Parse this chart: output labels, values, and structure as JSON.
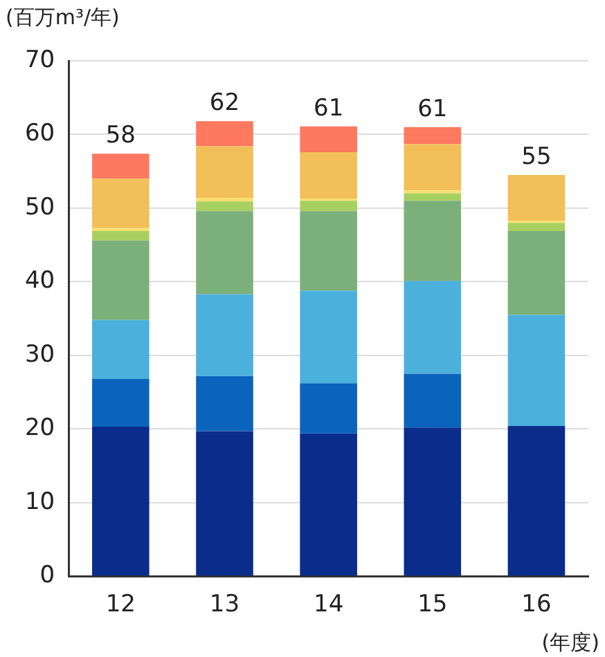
{
  "chart_data": {
    "type": "bar",
    "stacked": true,
    "ylabel": "(百万m³/年)",
    "xlabel": "(年度)",
    "categories": [
      "12",
      "13",
      "14",
      "15",
      "16"
    ],
    "series": [
      {
        "color": "#0a2d8c",
        "values": [
          20.3,
          19.7,
          19.4,
          20.2,
          20.4
        ]
      },
      {
        "color": "#0a64bc",
        "values": [
          6.5,
          7.5,
          6.8,
          7.3,
          0
        ]
      },
      {
        "color": "#4cb0dc",
        "values": [
          8,
          11.1,
          12.6,
          12.6,
          15.1
        ]
      },
      {
        "color": "#7cb07a",
        "values": [
          10.8,
          11.3,
          10.8,
          10.9,
          11.4
        ]
      },
      {
        "color": "#a8d060",
        "values": [
          1.3,
          1.3,
          1.4,
          1.0,
          1.1
        ]
      },
      {
        "color": "#f8e070",
        "values": [
          0.4,
          0.5,
          0.3,
          0.4,
          0.3
        ]
      },
      {
        "color": "#f2bf58",
        "values": [
          6.7,
          7.0,
          6.3,
          6.3,
          6.2
        ]
      },
      {
        "color": "#ff7860",
        "values": [
          3.4,
          3.4,
          3.5,
          2.3,
          0
        ]
      }
    ],
    "totals": [
      "58",
      "62",
      "61",
      "61",
      "55"
    ],
    "ylim": [
      0,
      70
    ],
    "yticks": [
      0,
      10,
      20,
      30,
      40,
      50,
      60,
      70
    ],
    "grid": "y",
    "legend": false
  }
}
